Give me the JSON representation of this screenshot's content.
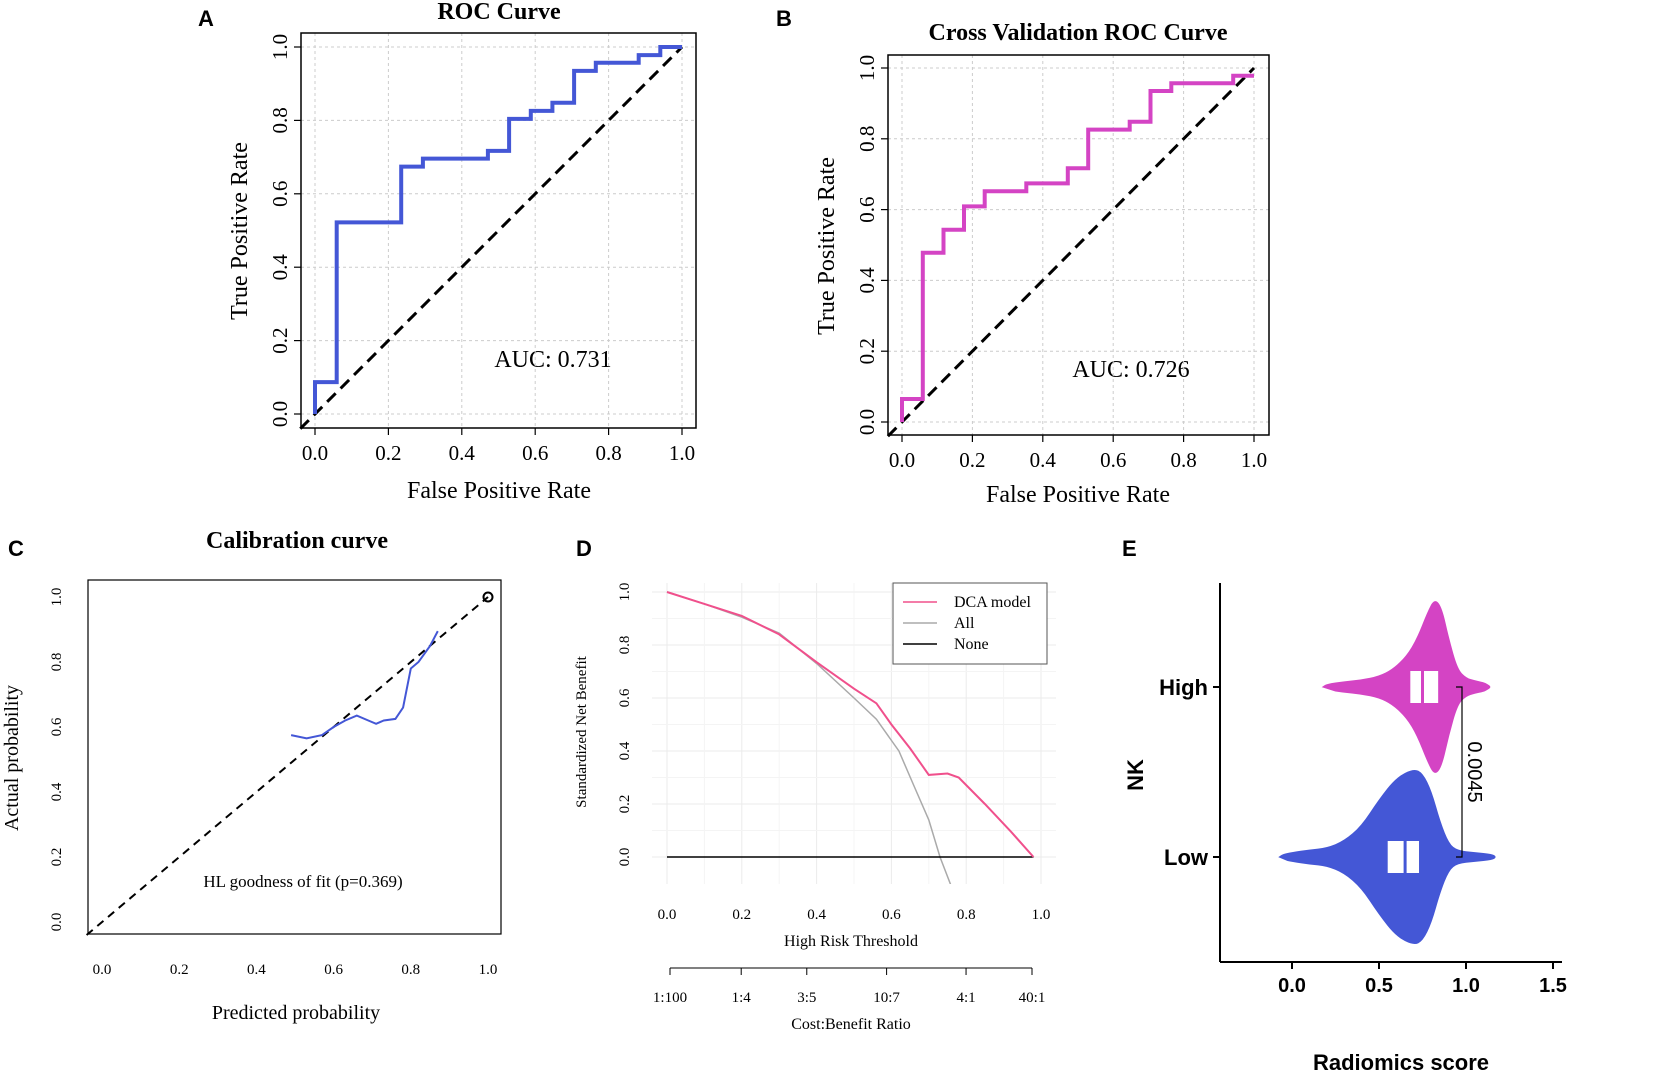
{
  "panels": {
    "a": {
      "label": "A",
      "chart_data": {
        "type": "line",
        "title": "ROC Curve",
        "xlabel": "False Positive Rate",
        "ylabel": "True Positive Rate",
        "xlim": [
          0,
          1
        ],
        "ylim": [
          0,
          1
        ],
        "xticks": [
          "0.0",
          "0.2",
          "0.4",
          "0.6",
          "0.8",
          "1.0"
        ],
        "yticks": [
          "0.0",
          "0.2",
          "0.4",
          "0.6",
          "0.8",
          "1.0"
        ],
        "grid": true,
        "annotation": "AUC: 0.731",
        "series": [
          {
            "name": "ROC",
            "color": "#4457d6",
            "x": [
              0,
              0,
              0.059,
              0.059,
              0.235,
              0.235,
              0.294,
              0.294,
              0.471,
              0.471,
              0.529,
              0.529,
              0.588,
              0.588,
              0.647,
              0.647,
              0.706,
              0.706,
              0.765,
              0.765,
              0.882,
              0.882,
              0.941,
              0.941,
              1.0
            ],
            "y": [
              0,
              0.087,
              0.087,
              0.522,
              0.522,
              0.674,
              0.674,
              0.696,
              0.696,
              0.717,
              0.717,
              0.804,
              0.804,
              0.826,
              0.826,
              0.848,
              0.848,
              0.935,
              0.935,
              0.957,
              0.957,
              0.978,
              0.978,
              1.0,
              1.0
            ]
          },
          {
            "name": "diagonal",
            "color": "#000000",
            "x": [
              0,
              1
            ],
            "y": [
              0,
              1
            ]
          }
        ]
      }
    },
    "b": {
      "label": "B",
      "chart_data": {
        "type": "line",
        "title": "Cross Validation ROC Curve",
        "xlabel": "False Positive Rate",
        "ylabel": "True Positive Rate",
        "xlim": [
          0,
          1
        ],
        "ylim": [
          0,
          1
        ],
        "xticks": [
          "0.0",
          "0.2",
          "0.4",
          "0.6",
          "0.8",
          "1.0"
        ],
        "yticks": [
          "0.0",
          "0.2",
          "0.4",
          "0.6",
          "0.8",
          "1.0"
        ],
        "grid": true,
        "annotation": "AUC: 0.726",
        "series": [
          {
            "name": "CV ROC",
            "color": "#d444c4",
            "x": [
              0,
              0,
              0.059,
              0.059,
              0.118,
              0.118,
              0.176,
              0.176,
              0.235,
              0.235,
              0.353,
              0.353,
              0.471,
              0.471,
              0.529,
              0.529,
              0.647,
              0.647,
              0.706,
              0.706,
              0.765,
              0.765,
              0.941,
              0.941,
              1.0
            ],
            "y": [
              0,
              0.065,
              0.065,
              0.478,
              0.478,
              0.543,
              0.543,
              0.609,
              0.609,
              0.652,
              0.652,
              0.674,
              0.674,
              0.717,
              0.717,
              0.826,
              0.826,
              0.848,
              0.848,
              0.935,
              0.935,
              0.957,
              0.957,
              0.978,
              0.978
            ]
          },
          {
            "name": "diagonal",
            "color": "#000000",
            "x": [
              0,
              1
            ],
            "y": [
              0,
              1
            ]
          }
        ]
      }
    },
    "c": {
      "label": "C",
      "chart_data": {
        "type": "line",
        "title": "Calibration curve",
        "xlabel": "Predicted probability",
        "ylabel": "Actual probability",
        "xlim": [
          0,
          1
        ],
        "ylim": [
          0,
          1
        ],
        "xticks": [
          "0.0",
          "0.2",
          "0.4",
          "0.6",
          "0.8",
          "1.0"
        ],
        "yticks": [
          "0.0",
          "0.2",
          "0.4",
          "0.6",
          "0.8",
          "1.0"
        ],
        "grid": false,
        "annotation": "HL goodness of fit (p=0.369)",
        "series": [
          {
            "name": "calibration",
            "color": "#4457d6",
            "x": [
              0.49,
              0.53,
              0.57,
              0.6,
              0.63,
              0.66,
              0.69,
              0.71,
              0.73,
              0.76,
              0.78,
              0.8,
              0.82,
              0.85,
              0.87
            ],
            "y": [
              0.575,
              0.565,
              0.575,
              0.6,
              0.62,
              0.635,
              0.62,
              0.61,
              0.62,
              0.625,
              0.66,
              0.78,
              0.8,
              0.85,
              0.895
            ]
          },
          {
            "name": "ideal",
            "color": "#000000",
            "x": [
              0,
              1
            ],
            "y": [
              0,
              1
            ]
          }
        ]
      }
    },
    "d": {
      "label": "D",
      "chart_data": {
        "type": "line",
        "title": "",
        "xlabel": "High Risk Threshold",
        "ylabel": "Standardized Net Benefit",
        "x2label": "Cost:Benefit Ratio",
        "xlim": [
          0,
          1
        ],
        "ylim": [
          0,
          1
        ],
        "xticks": [
          "0.0",
          "0.2",
          "0.4",
          "0.6",
          "0.8",
          "1.0"
        ],
        "yticks": [
          "0.0",
          "0.2",
          "0.4",
          "0.6",
          "0.8",
          "1.0"
        ],
        "x2ticks": [
          "1:100",
          "1:4",
          "3:5",
          "10:7",
          "4:1",
          "40:1"
        ],
        "x2tick_positions": [
          0.01,
          0.2,
          0.375,
          0.588,
          0.8,
          0.976
        ],
        "grid": true,
        "legend": [
          "DCA model",
          "All",
          "None"
        ],
        "series": [
          {
            "name": "DCA model",
            "color": "#f0508c",
            "x": [
              0,
              0.1,
              0.2,
              0.3,
              0.4,
              0.5,
              0.56,
              0.6,
              0.65,
              0.7,
              0.75,
              0.78,
              0.85,
              0.92,
              0.98
            ],
            "y": [
              1.0,
              0.955,
              0.91,
              0.84,
              0.735,
              0.635,
              0.58,
              0.5,
              0.41,
              0.31,
              0.315,
              0.3,
              0.2,
              0.095,
              0.0
            ]
          },
          {
            "name": "All",
            "color": "#aaaaaa",
            "x": [
              0,
              0.1,
              0.2,
              0.3,
              0.4,
              0.5,
              0.56,
              0.62,
              0.66,
              0.7,
              0.73,
              0.76
            ],
            "y": [
              1.0,
              0.955,
              0.905,
              0.845,
              0.73,
              0.6,
              0.52,
              0.4,
              0.27,
              0.14,
              0.0,
              -0.11
            ]
          },
          {
            "name": "None",
            "color": "#000000",
            "x": [
              0,
              0.98
            ],
            "y": [
              0,
              0
            ]
          }
        ]
      }
    },
    "e": {
      "label": "E",
      "chart_data": {
        "type": "violin",
        "title": "",
        "xlabel": "Radiomics score",
        "ylabel": "NK",
        "xlim": [
          -0.35,
          1.55
        ],
        "xticks": [
          "0.0",
          "0.5",
          "1.0",
          "1.5"
        ],
        "categories": [
          "High",
          "Low"
        ],
        "p_value": "0.0045",
        "series": [
          {
            "name": "High",
            "color": "#d444c4",
            "median": 0.75,
            "q1": 0.68,
            "q3": 0.84,
            "density_x": [
              0.2,
              0.3,
              0.4,
              0.5,
              0.58,
              0.66,
              0.72,
              0.78,
              0.82,
              0.86,
              0.9,
              0.95,
              1.0,
              1.05,
              1.1,
              1.12
            ],
            "density_w": [
              0.03,
              0.06,
              0.08,
              0.12,
              0.2,
              0.35,
              0.55,
              0.85,
              1.0,
              0.9,
              0.55,
              0.2,
              0.1,
              0.07,
              0.05,
              0.03
            ]
          },
          {
            "name": "Low",
            "color": "#4457d6",
            "median": 0.65,
            "q1": 0.55,
            "q3": 0.73,
            "density_x": [
              -0.05,
              0.0,
              0.1,
              0.2,
              0.3,
              0.4,
              0.5,
              0.6,
              0.7,
              0.75,
              0.8,
              0.85,
              0.9,
              0.95,
              1.05,
              1.15
            ],
            "density_w": [
              0.03,
              0.05,
              0.08,
              0.1,
              0.18,
              0.35,
              0.65,
              0.9,
              1.0,
              0.95,
              0.75,
              0.4,
              0.15,
              0.07,
              0.05,
              0.03
            ]
          }
        ]
      }
    }
  }
}
